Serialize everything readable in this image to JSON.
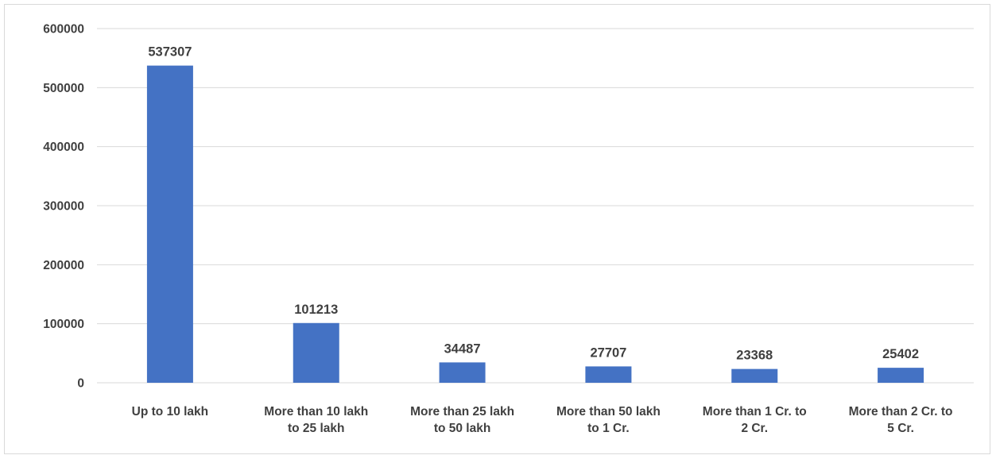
{
  "chart_data": {
    "type": "bar",
    "categories": [
      [
        "Up to 10 lakh"
      ],
      [
        "More than 10 lakh",
        "to 25 lakh"
      ],
      [
        "More than 25 lakh",
        "to 50 lakh"
      ],
      [
        "More than 50 lakh",
        "to 1 Cr."
      ],
      [
        "More than 1 Cr. to",
        "2 Cr."
      ],
      [
        "More than 2 Cr. to",
        "5 Cr."
      ]
    ],
    "values": [
      537307,
      101213,
      34487,
      27707,
      23368,
      25402
    ],
    "data_labels": [
      "537307",
      "101213",
      "34487",
      "27707",
      "23368",
      "25402"
    ],
    "yticks": [
      "0",
      "100000",
      "200000",
      "300000",
      "400000",
      "500000",
      "600000"
    ],
    "ylim": [
      0,
      600000
    ],
    "title": "",
    "xlabel": "",
    "ylabel": "",
    "grid": true,
    "bar_color": "#4472c4",
    "grid_color": "#d9d9d9"
  }
}
